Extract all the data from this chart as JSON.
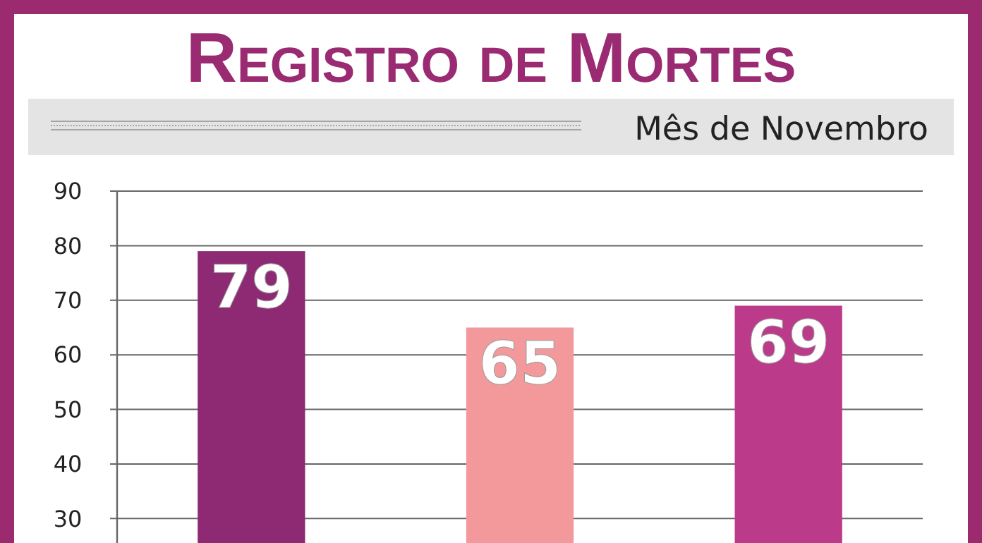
{
  "chart_data": {
    "type": "bar",
    "title": "Registro de Mortes",
    "subtitle": "Mês de Novembro",
    "categories": [
      null,
      null,
      null
    ],
    "values": [
      79,
      65,
      69
    ],
    "colors": [
      "#8e2a73",
      "#f4999b",
      "#bc3a8a"
    ],
    "ylim": [
      25,
      90
    ],
    "yticks": [
      30,
      40,
      50,
      60,
      70,
      80,
      90
    ],
    "grid": "y",
    "data_labels": true
  }
}
